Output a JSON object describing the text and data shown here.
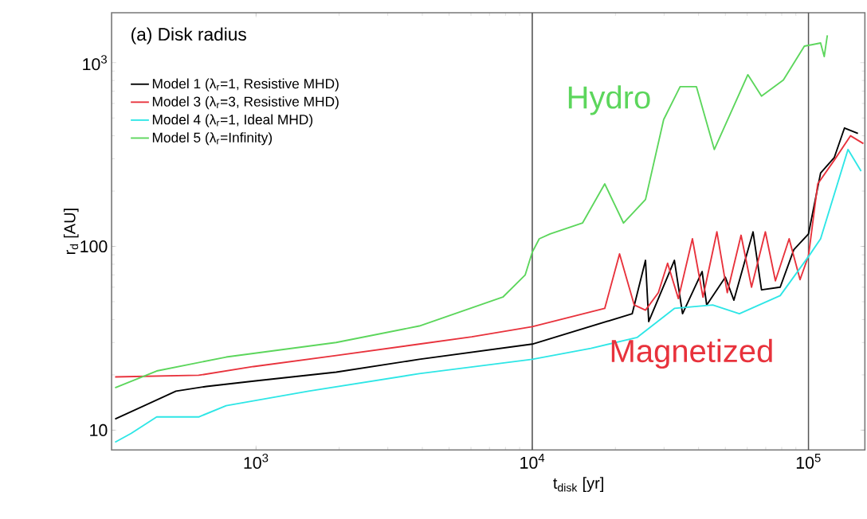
{
  "chart_data": {
    "type": "line",
    "title": "(a) Disk radius",
    "xlabel": "t$_{disk}$ [yr]",
    "ylabel": "r$_{d}$ [AU]",
    "log": "xy",
    "xlim": [
      300,
      160000
    ],
    "ylim": [
      7.8,
      1870
    ],
    "xticks": [
      {
        "value": 1000,
        "label": "10$^{3}$"
      },
      {
        "value": 10000,
        "label": "10$^{4}$"
      },
      {
        "value": 100000,
        "label": "10$^{5}$"
      }
    ],
    "yticks": [
      10,
      100,
      {
        "value": 1000,
        "label": "10$^{3}$"
      }
    ],
    "legend": "top left",
    "grid": false,
    "marker": "none",
    "line_style": "solid",
    "series": [
      {
        "name": "Model 1 (λ$_{r}$=1, Resistive MHD)",
        "color": "#000000",
        "x": [
          309,
          513,
          661,
          980,
          1950,
          3900,
          10000,
          23000,
          25700,
          26400,
          32700,
          35000,
          41200,
          42800,
          50000,
          53700,
          63000,
          67600,
          79000,
          88500,
          100000,
          110600,
          124000,
          135000,
          151000
        ],
        "values": [
          11.5,
          16.3,
          17.3,
          18.5,
          20.7,
          24.3,
          29.4,
          43,
          84,
          39,
          84,
          43,
          73,
          48,
          68,
          51,
          120,
          58,
          60,
          96,
          117,
          251,
          305,
          441,
          412
        ]
      },
      {
        "name": "Model 3 (λ$_{r}$=3, Resistive MHD)",
        "color": "#e8323c",
        "x": [
          309,
          620,
          980,
          1950,
          3900,
          6040,
          10000,
          18300,
          20700,
          23400,
          25700,
          28600,
          30900,
          33800,
          38000,
          41500,
          46600,
          50800,
          57000,
          62200,
          69800,
          75900,
          85100,
          93200,
          100000,
          108000,
          124000,
          142000,
          158000
        ],
        "values": [
          19.5,
          19.9,
          22.2,
          25.5,
          29.4,
          32.2,
          36.6,
          46,
          91,
          48,
          45,
          56,
          81,
          52,
          110,
          53,
          120,
          56,
          115,
          60,
          120,
          65,
          110,
          66,
          89,
          219,
          295,
          400,
          363
        ]
      },
      {
        "name": "Model 4 (λ$_{r}$=1, Ideal MHD)",
        "color": "#2ee6e6",
        "x": [
          309,
          353,
          437,
          620,
          780,
          1550,
          3900,
          10000,
          16300,
          24000,
          32700,
          45000,
          56200,
          79000,
          101000,
          110600,
          139000,
          155000
        ],
        "values": [
          8.6,
          9.6,
          11.8,
          11.8,
          13.6,
          16.3,
          20.3,
          24.3,
          27.9,
          32,
          46,
          48,
          43,
          54,
          90,
          110,
          337,
          257
        ]
      },
      {
        "name": "Model 5 (λ$_{r}$=Infinity)",
        "color": "#5cd65c",
        "x": [
          309,
          437,
          780,
          1950,
          3900,
          7830,
          9430,
          10000,
          10600,
          11600,
          15200,
          18300,
          21400,
          25700,
          29900,
          34300,
          39300,
          45600,
          60300,
          67600,
          81100,
          96600,
          110600,
          114000,
          117000
        ],
        "values": [
          17,
          21,
          25,
          30,
          36.9,
          53,
          70,
          93,
          110,
          117,
          134,
          219,
          134,
          180,
          490,
          740,
          740,
          337,
          860,
          658,
          804,
          1230,
          1280,
          1080,
          1410
        ]
      }
    ],
    "ref_lines": [
      {
        "axis": "x",
        "value": 10000,
        "color": "#555555"
      },
      {
        "axis": "x",
        "value": 100000,
        "color": "#555555"
      }
    ],
    "annotations": [
      "Hydro",
      "Magnetized"
    ]
  }
}
